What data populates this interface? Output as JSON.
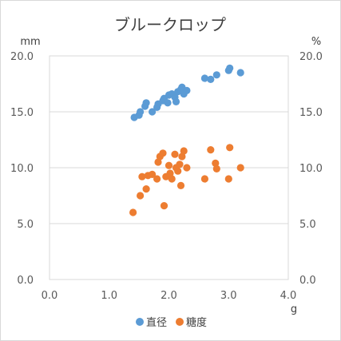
{
  "chart_data": {
    "type": "scatter",
    "title": "ブルークロップ",
    "x_unit": "g",
    "y_left_unit": "mm",
    "y_right_unit": "%",
    "xlim": [
      0,
      4
    ],
    "ylim": [
      0,
      20
    ],
    "xticks": [
      "0.0",
      "1.0",
      "2.0",
      "3.0",
      "4.0"
    ],
    "yticks": [
      "0.0",
      "5.0",
      "10.0",
      "15.0",
      "20.0"
    ],
    "legend_position": "bottom",
    "gridlines": "horizontal",
    "series": [
      {
        "name": "直径",
        "color": "#5B9BD5",
        "points": [
          [
            1.42,
            14.5
          ],
          [
            1.5,
            14.7
          ],
          [
            1.52,
            15.0
          ],
          [
            1.6,
            15.5
          ],
          [
            1.62,
            15.8
          ],
          [
            1.72,
            15.0
          ],
          [
            1.8,
            15.4
          ],
          [
            1.82,
            15.7
          ],
          [
            1.9,
            16.0
          ],
          [
            1.92,
            16.2
          ],
          [
            1.98,
            15.8
          ],
          [
            2.0,
            16.5
          ],
          [
            2.05,
            16.6
          ],
          [
            2.1,
            16.3
          ],
          [
            2.12,
            15.9
          ],
          [
            2.15,
            16.8
          ],
          [
            2.2,
            17.0
          ],
          [
            2.22,
            17.2
          ],
          [
            2.25,
            16.6
          ],
          [
            2.3,
            16.9
          ],
          [
            2.6,
            18.0
          ],
          [
            2.7,
            17.9
          ],
          [
            2.8,
            18.3
          ],
          [
            3.0,
            18.7
          ],
          [
            3.02,
            18.9
          ],
          [
            3.2,
            18.5
          ]
        ]
      },
      {
        "name": "糖度",
        "color": "#ED7D31",
        "points": [
          [
            1.4,
            6.0
          ],
          [
            1.52,
            7.5
          ],
          [
            1.55,
            9.2
          ],
          [
            1.62,
            8.1
          ],
          [
            1.65,
            9.3
          ],
          [
            1.72,
            9.4
          ],
          [
            1.8,
            9.0
          ],
          [
            1.82,
            10.5
          ],
          [
            1.85,
            11.0
          ],
          [
            1.9,
            11.3
          ],
          [
            1.92,
            6.6
          ],
          [
            1.95,
            9.2
          ],
          [
            2.0,
            10.2
          ],
          [
            2.02,
            9.5
          ],
          [
            2.05,
            9.0
          ],
          [
            2.1,
            11.2
          ],
          [
            2.12,
            10.0
          ],
          [
            2.15,
            9.7
          ],
          [
            2.18,
            10.3
          ],
          [
            2.2,
            8.4
          ],
          [
            2.22,
            11.0
          ],
          [
            2.25,
            11.5
          ],
          [
            2.3,
            10.0
          ],
          [
            2.6,
            9.0
          ],
          [
            2.7,
            11.6
          ],
          [
            2.78,
            10.4
          ],
          [
            2.8,
            9.9
          ],
          [
            3.0,
            9.0
          ],
          [
            3.02,
            11.8
          ],
          [
            3.2,
            10.0
          ]
        ]
      }
    ]
  }
}
